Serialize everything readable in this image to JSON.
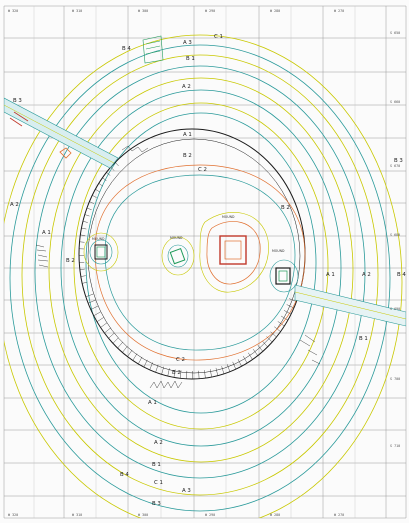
{
  "grid": {
    "top_labels": [
      "W 320",
      "W 310",
      "W 300",
      "W 290",
      "W 280",
      "W 270"
    ],
    "bottom_labels": [
      "W 320",
      "W 310",
      "W 300",
      "W 290",
      "W 280",
      "W 270"
    ],
    "right_labels": [
      "S 650",
      "S 660",
      "S 670",
      "S 680",
      "S 690",
      "S 700",
      "S 710"
    ]
  },
  "zones": [
    {
      "name": "C 1",
      "color": "#b8b800"
    },
    {
      "name": "B 4",
      "color": "#3a3a3a"
    },
    {
      "name": "A 3",
      "color": "#3a3a3a"
    },
    {
      "name": "B 1",
      "color": "#3a3a3a"
    },
    {
      "name": "A 2",
      "color": "#3a3a3a"
    },
    {
      "name": "B 3",
      "color": "#3a3a3a"
    },
    {
      "name": "A 1",
      "color": "#3a3a3a"
    },
    {
      "name": "B 2",
      "color": "#3a3a3a"
    },
    {
      "name": "C 2",
      "color": "#3a3a3a"
    }
  ],
  "features": {
    "west": "MOUND",
    "center": "MOUND",
    "main": "MOUND",
    "east": "MOUND"
  },
  "colors": {
    "contour_yellow": "#c8c800",
    "contour_teal": "#2a9a9a",
    "contour_orange": "#e07030",
    "ditch": "#1a1a1a",
    "grid": "#9a9a9a",
    "feature_green": "#1f9a5a"
  }
}
